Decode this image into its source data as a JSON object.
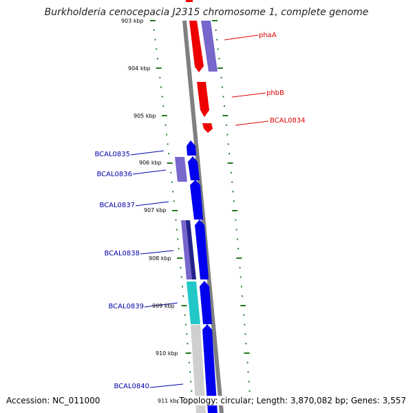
{
  "title": "Burkholderia cenocepacia J2315 chromosome 1, complete genome",
  "accession": "Accession: NC_011000",
  "summary": "Topology: circular; Length: 3,870,082 bp; Genes: 3,557",
  "colors": {
    "backbone": "#7f7f7f",
    "tick": "#1f7a1f",
    "red": "#ee0000",
    "blue": "#0000ee",
    "purple": "#7766cc",
    "cyan": "#22c7c7",
    "grey": "#cfcfcf",
    "red_label": "#dd0000",
    "blue_label": "#0000aa"
  },
  "scale_labels": [
    "903 kbp",
    "904 kbp",
    "905 kbp",
    "906 kbp",
    "907 kbp",
    "908 kbp",
    "909 kbp",
    "910 kbp",
    "911 kbp"
  ],
  "gene_labels_right": [
    "phaA",
    "phbB",
    "BCAL0834"
  ],
  "gene_labels_left": [
    "BCAL0835",
    "BCAL0836",
    "BCAL0837",
    "BCAL0838",
    "BCAL0839",
    "BCAL0840"
  ]
}
